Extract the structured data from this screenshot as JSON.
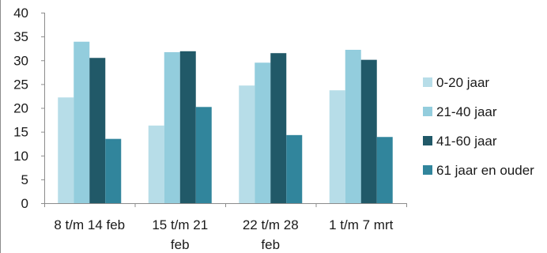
{
  "chart_data": {
    "type": "bar",
    "title": "",
    "xlabel": "",
    "ylabel": "",
    "ylim": [
      0,
      40
    ],
    "yticks": [
      0,
      5,
      10,
      15,
      20,
      25,
      30,
      35,
      40
    ],
    "grid": false,
    "legend_position": "right",
    "categories": [
      [
        "8 t/m 14 feb"
      ],
      [
        "15 t/m 21",
        "feb"
      ],
      [
        "22 t/m 28",
        "feb"
      ],
      [
        "1 t/m 7 mrt"
      ]
    ],
    "series": [
      {
        "name": "0-20 jaar",
        "color": "#b7dde8",
        "values": [
          22.2,
          16.3,
          24.7,
          23.7
        ]
      },
      {
        "name": "21-40 jaar",
        "color": "#93cddd",
        "values": [
          33.9,
          31.7,
          29.5,
          32.2
        ]
      },
      {
        "name": "41-60 jaar",
        "color": "#215968",
        "values": [
          30.5,
          31.9,
          31.5,
          30.1
        ]
      },
      {
        "name": "61 jaar en ouder",
        "color": "#31859c",
        "values": [
          13.5,
          20.2,
          14.3,
          13.9
        ]
      }
    ],
    "axis_color": "#8c8c8c"
  }
}
